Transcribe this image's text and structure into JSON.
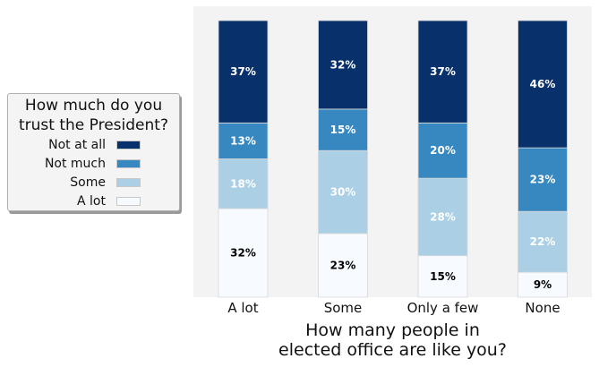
{
  "chart_data": {
    "type": "bar",
    "stacked": true,
    "normalized": true,
    "categories": [
      "A lot",
      "Some",
      "Only a few",
      "None"
    ],
    "series": [
      {
        "name": "A lot",
        "values": [
          32,
          23,
          15,
          9
        ],
        "color": "#f7fbff",
        "label_color": "#000000"
      },
      {
        "name": "Some",
        "values": [
          18,
          30,
          28,
          22
        ],
        "color": "#abcfe5",
        "label_color": "#ffffff"
      },
      {
        "name": "Not much",
        "values": [
          13,
          15,
          20,
          23
        ],
        "color": "#3787c0",
        "label_color": "#ffffff"
      },
      {
        "name": "Not at all",
        "values": [
          37,
          32,
          37,
          46
        ],
        "color": "#08306b",
        "label_color": "#ffffff"
      }
    ],
    "data_labels": [
      [
        "32%",
        "23%",
        "15%",
        "9%"
      ],
      [
        "18%",
        "30%",
        "28%",
        "22%"
      ],
      [
        "13%",
        "15%",
        "20%",
        "23%"
      ],
      [
        "37%",
        "32%",
        "37%",
        "46%"
      ]
    ],
    "xlabel": "How many people in\nelected office are like you?",
    "ylabel": "",
    "ylim": [
      0,
      100
    ],
    "grid": false,
    "legend": {
      "title": "How much do you\ntrust the President?",
      "placement": "left",
      "order": [
        "Not at all",
        "Not much",
        "Some",
        "A lot"
      ]
    },
    "plot_background": "#f3f3f3"
  }
}
